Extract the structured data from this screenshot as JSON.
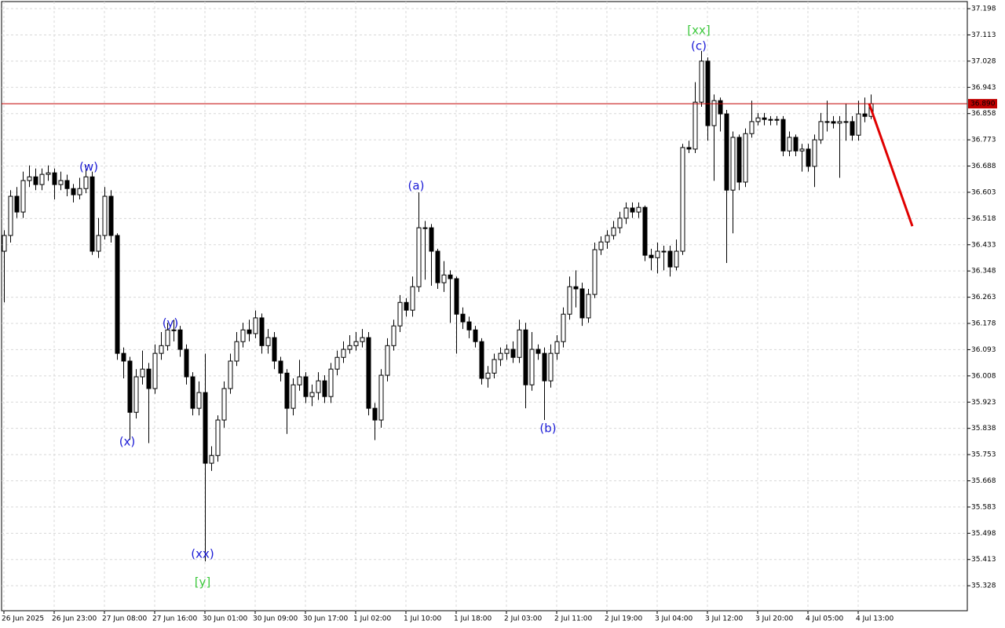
{
  "chart_data": {
    "type": "candlestick",
    "x": [
      "26 Jun 2025",
      null,
      null,
      null,
      null,
      null,
      null,
      null,
      "26 Jun 23:00",
      null,
      null,
      null,
      null,
      null,
      null,
      null,
      "27 Jun 08:00",
      null,
      null,
      null,
      null,
      null,
      null,
      null,
      "27 Jun 16:00",
      null,
      null,
      null,
      null,
      null,
      null,
      null,
      "30 Jun 01:00",
      null,
      null,
      null,
      null,
      null,
      null,
      null,
      "30 Jun 09:00",
      null,
      null,
      null,
      null,
      null,
      null,
      null,
      "30 Jun 17:00",
      null,
      null,
      null,
      null,
      null,
      null,
      null,
      "1 Jul 02:00",
      null,
      null,
      null,
      null,
      null,
      null,
      null,
      "1 Jul 10:00",
      null,
      null,
      null,
      null,
      null,
      null,
      null,
      "1 Jul 18:00",
      null,
      null,
      null,
      null,
      null,
      null,
      null,
      "2 Jul 03:00",
      null,
      null,
      null,
      null,
      null,
      null,
      null,
      "2 Jul 11:00",
      null,
      null,
      null,
      null,
      null,
      null,
      null,
      "2 Jul 19:00",
      null,
      null,
      null,
      null,
      null,
      null,
      null,
      "3 Jul 04:00",
      null,
      null,
      null,
      null,
      null,
      null,
      null,
      "3 Jul 12:00",
      null,
      null,
      null,
      null,
      null,
      null,
      null,
      "3 Jul 20:00",
      null,
      null,
      null,
      null,
      null,
      null,
      null,
      "4 Jul 05:00",
      null,
      null,
      null,
      null,
      null,
      null,
      null,
      "4 Jul 13:00",
      null,
      null
    ],
    "open": [
      36.412,
      36.463,
      36.59,
      36.539,
      36.641,
      36.653,
      36.628,
      36.661,
      36.666,
      36.628,
      36.641,
      36.615,
      36.595,
      36.615,
      36.653,
      36.412,
      36.463,
      36.59,
      36.463,
      36.081,
      36.056,
      35.89,
      36.005,
      36.03,
      35.967,
      36.081,
      36.106,
      36.157,
      36.157,
      36.094,
      36.005,
      35.903,
      35.954,
      35.725,
      35.75,
      35.865,
      35.967,
      36.056,
      36.119,
      36.157,
      36.145,
      36.196,
      36.106,
      36.132,
      36.056,
      36.017,
      35.903,
      35.979,
      36.005,
      35.941,
      35.954,
      35.992,
      35.941,
      36.03,
      36.068,
      36.094,
      36.106,
      36.119,
      36.132,
      35.903,
      35.865,
      36.01,
      36.106,
      36.17,
      36.246,
      36.221,
      36.297,
      36.488,
      36.488,
      36.412,
      36.31,
      36.335,
      36.323,
      36.208,
      36.183,
      36.157,
      36.119,
      36.0,
      36.017,
      36.061,
      36.081,
      36.094,
      36.068,
      36.157,
      35.979,
      36.094,
      36.081,
      35.992,
      36.081,
      36.119,
      36.208,
      36.297,
      36.29,
      36.196,
      36.272,
      36.417,
      36.442,
      36.463,
      36.488,
      36.519,
      36.552,
      36.539,
      36.554,
      36.399,
      36.391,
      36.412,
      36.412,
      36.361,
      36.412,
      36.748,
      36.743,
      36.895,
      37.028,
      36.819,
      36.9,
      36.857,
      36.61,
      36.781,
      36.636,
      36.793,
      36.832,
      36.844,
      36.839,
      36.837,
      36.839,
      36.737,
      36.781,
      36.737,
      36.743,
      36.687,
      36.773,
      36.832,
      36.832,
      36.827,
      36.832,
      36.832,
      36.788,
      36.857,
      36.849
    ],
    "high": [
      36.48,
      36.61,
      36.62,
      36.67,
      36.69,
      36.68,
      36.68,
      36.69,
      36.68,
      36.67,
      36.66,
      36.63,
      36.65,
      36.69,
      36.67,
      36.52,
      36.62,
      36.61,
      36.47,
      36.1,
      36.07,
      36.03,
      36.09,
      36.05,
      36.11,
      36.15,
      36.18,
      36.19,
      36.17,
      36.11,
      36.02,
      35.99,
      36.08,
      35.78,
      35.88,
      35.99,
      36.08,
      36.15,
      36.18,
      36.19,
      36.22,
      36.21,
      36.16,
      36.15,
      36.07,
      36.03,
      36.0,
      36.06,
      36.02,
      35.98,
      36.02,
      36.01,
      36.05,
      36.09,
      36.12,
      36.14,
      36.15,
      36.16,
      36.15,
      35.92,
      36.03,
      36.13,
      36.19,
      36.27,
      36.26,
      36.33,
      36.603,
      36.51,
      36.5,
      36.42,
      36.38,
      36.35,
      36.33,
      36.23,
      36.2,
      36.17,
      36.13,
      36.04,
      36.08,
      36.1,
      36.11,
      36.12,
      36.19,
      36.18,
      36.15,
      36.11,
      36.1,
      36.11,
      36.14,
      36.23,
      36.33,
      36.35,
      36.31,
      36.29,
      36.44,
      36.46,
      36.48,
      36.51,
      36.54,
      36.57,
      36.57,
      36.57,
      36.56,
      36.42,
      36.44,
      36.43,
      36.43,
      36.45,
      36.76,
      36.77,
      36.96,
      37.061,
      37.04,
      36.92,
      36.91,
      36.87,
      36.8,
      36.79,
      36.81,
      36.9,
      36.86,
      36.86,
      36.85,
      36.85,
      36.85,
      36.8,
      36.79,
      36.76,
      36.76,
      36.79,
      36.86,
      36.9,
      36.85,
      36.85,
      36.89,
      36.85,
      36.9,
      36.91,
      36.92
    ],
    "low": [
      36.246,
      36.44,
      36.52,
      36.52,
      36.62,
      36.61,
      36.61,
      36.64,
      36.58,
      36.61,
      36.59,
      36.57,
      36.58,
      36.6,
      36.4,
      36.39,
      36.45,
      36.44,
      36.06,
      36.0,
      35.801,
      35.87,
      35.98,
      35.79,
      35.95,
      36.06,
      36.09,
      36.12,
      36.07,
      35.98,
      35.88,
      35.88,
      35.407,
      35.7,
      35.73,
      35.84,
      35.95,
      36.04,
      36.1,
      36.12,
      36.13,
      36.08,
      36.08,
      36.03,
      35.99,
      35.82,
      35.88,
      35.96,
      35.92,
      35.91,
      35.93,
      35.92,
      35.92,
      36.01,
      36.05,
      36.08,
      36.09,
      36.1,
      35.88,
      35.8,
      35.84,
      35.99,
      36.09,
      36.15,
      36.2,
      36.2,
      36.28,
      36.32,
      36.3,
      36.29,
      36.28,
      36.18,
      36.08,
      36.16,
      36.13,
      36.1,
      35.98,
      35.97,
      36.0,
      36.04,
      36.06,
      36.05,
      36.05,
      35.903,
      35.96,
      36.06,
      35.865,
      35.97,
      36.06,
      36.1,
      36.19,
      36.23,
      36.17,
      36.18,
      36.26,
      36.4,
      36.42,
      36.45,
      36.47,
      36.5,
      36.52,
      36.52,
      36.38,
      36.35,
      36.34,
      36.35,
      36.33,
      36.35,
      36.4,
      36.73,
      36.73,
      36.88,
      36.77,
      36.64,
      36.8,
      36.374,
      36.47,
      36.61,
      36.62,
      36.78,
      36.82,
      36.82,
      36.82,
      36.82,
      36.72,
      36.72,
      36.72,
      36.67,
      36.67,
      36.62,
      36.76,
      36.8,
      36.81,
      36.65,
      36.77,
      36.77,
      36.77,
      36.83,
      36.84
    ],
    "close": [
      36.463,
      36.59,
      36.539,
      36.641,
      36.653,
      36.628,
      36.661,
      36.666,
      36.628,
      36.641,
      36.615,
      36.595,
      36.615,
      36.653,
      36.412,
      36.463,
      36.59,
      36.463,
      36.081,
      36.056,
      35.89,
      36.005,
      36.03,
      35.967,
      36.081,
      36.106,
      36.157,
      36.157,
      36.094,
      36.005,
      35.903,
      35.954,
      35.725,
      35.75,
      35.865,
      35.967,
      36.056,
      36.119,
      36.157,
      36.145,
      36.196,
      36.106,
      36.132,
      36.056,
      36.017,
      35.903,
      35.979,
      36.005,
      35.941,
      35.954,
      35.992,
      35.941,
      36.03,
      36.068,
      36.094,
      36.106,
      36.119,
      36.132,
      35.903,
      35.865,
      36.01,
      36.106,
      36.17,
      36.246,
      36.221,
      36.297,
      36.488,
      36.488,
      36.412,
      36.31,
      36.335,
      36.323,
      36.208,
      36.183,
      36.157,
      36.119,
      36.0,
      36.017,
      36.061,
      36.081,
      36.094,
      36.068,
      36.157,
      35.979,
      36.094,
      36.081,
      35.992,
      36.081,
      36.119,
      36.208,
      36.297,
      36.29,
      36.196,
      36.272,
      36.417,
      36.442,
      36.463,
      36.488,
      36.519,
      36.552,
      36.539,
      36.554,
      36.399,
      36.391,
      36.412,
      36.412,
      36.361,
      36.412,
      36.748,
      36.743,
      36.895,
      37.028,
      36.819,
      36.9,
      36.857,
      36.61,
      36.781,
      36.636,
      36.793,
      36.832,
      36.844,
      36.839,
      36.837,
      36.839,
      36.737,
      36.781,
      36.737,
      36.743,
      36.687,
      36.773,
      36.832,
      36.832,
      36.827,
      36.832,
      36.832,
      36.788,
      36.857,
      36.849,
      36.89
    ],
    "up_color": "#ffffff",
    "down_color": "#000000",
    "ylim": [
      35.247,
      37.221
    ],
    "yticks": [
      37.198,
      37.113,
      37.028,
      36.943,
      36.858,
      36.773,
      36.688,
      36.603,
      36.518,
      36.433,
      36.348,
      36.263,
      36.178,
      36.093,
      36.008,
      35.923,
      35.838,
      35.753,
      35.668,
      35.583,
      35.498,
      35.413,
      35.328
    ],
    "grid": true,
    "current_price": 36.89,
    "current_price_label": "36.890",
    "current_price_color": "#c00000",
    "forecast": [
      36.89,
      36.493
    ],
    "forecast_color": "#e00000",
    "annotations": [
      {
        "text": "(w)",
        "color": "#1c1cd6"
      },
      {
        "text": "(x)",
        "color": "#1c1cd6"
      },
      {
        "text": "(y)",
        "color": "#1c1cd6"
      },
      {
        "text": "(xx)",
        "color": "#1c1cd6"
      },
      {
        "text": "[y]",
        "color": "#3cc83c"
      },
      {
        "text": "(a)",
        "color": "#1c1cd6"
      },
      {
        "text": "(b)",
        "color": "#1c1cd6"
      },
      {
        "text": "(c)",
        "color": "#1c1cd6"
      },
      {
        "text": "[xx]",
        "color": "#3cc83c"
      }
    ]
  }
}
